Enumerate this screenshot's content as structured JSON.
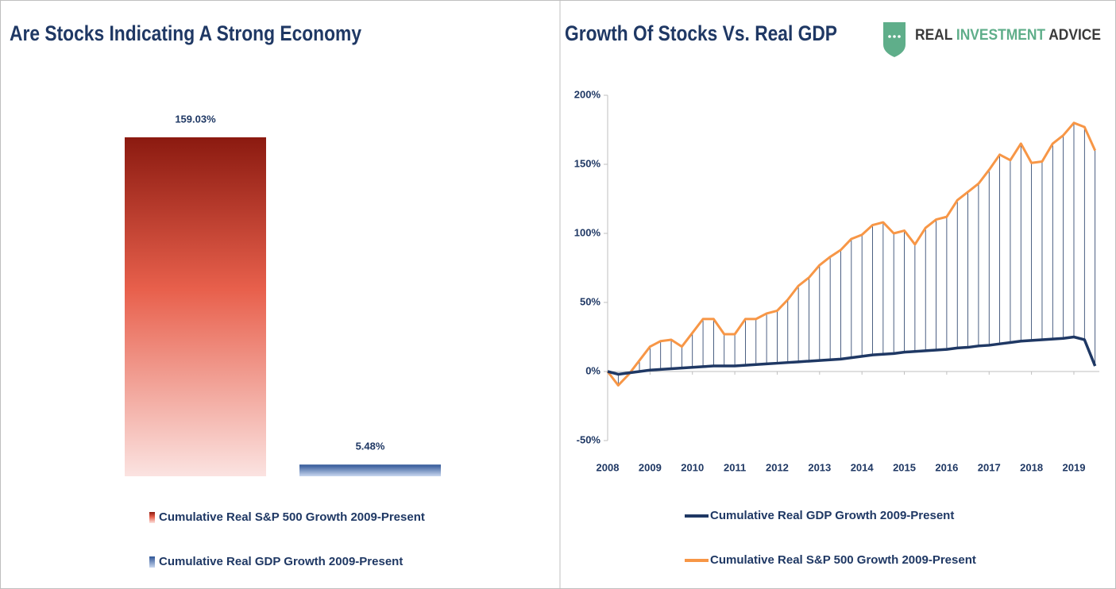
{
  "logo": [
    "REAL",
    "INVESTMENT",
    "ADVICE"
  ],
  "chart_data": [
    {
      "type": "bar",
      "title": "Are Stocks Indicating A Strong Economy",
      "series": [
        {
          "name": "Cumulative Real S&P 500 Growth 2009-Present",
          "color": "#9b2317",
          "values": [
            159.03
          ],
          "value_labels": [
            "159.03%"
          ]
        },
        {
          "name": "Cumulative Real GDP Growth 2009-Present",
          "color": "#2f5597",
          "values": [
            5.48
          ],
          "value_labels": [
            "5.48%"
          ]
        }
      ]
    },
    {
      "type": "line",
      "title": "Growth Of Stocks Vs. Real GDP",
      "x": [
        2008,
        2008.25,
        2008.5,
        2008.75,
        2009,
        2009.25,
        2009.5,
        2009.75,
        2010,
        2010.25,
        2010.5,
        2010.75,
        2011,
        2011.25,
        2011.5,
        2011.75,
        2012,
        2012.25,
        2012.5,
        2012.75,
        2013,
        2013.25,
        2013.5,
        2013.75,
        2014,
        2014.25,
        2014.5,
        2014.75,
        2015,
        2015.25,
        2015.5,
        2015.75,
        2016,
        2016.25,
        2016.5,
        2016.75,
        2017,
        2017.25,
        2017.5,
        2017.75,
        2018,
        2018.25,
        2018.5,
        2018.75,
        2019,
        2019.25,
        2019.5
      ],
      "series": [
        {
          "name": "Cumulative Real GDP Growth 2009-Present",
          "color": "#1f3864",
          "values": [
            0,
            -2,
            -1,
            0,
            1,
            1.5,
            2,
            2.5,
            3,
            3.5,
            4,
            4,
            4,
            4.5,
            5,
            5.5,
            6,
            6.5,
            7,
            7.5,
            8,
            8.5,
            9,
            10,
            11,
            12,
            12.5,
            13,
            14,
            14.5,
            15,
            15.5,
            16,
            17,
            17.5,
            18.5,
            19,
            20,
            21,
            22,
            22.5,
            23,
            23.5,
            24,
            25,
            23,
            4
          ]
        },
        {
          "name": "Cumulative Real S&P 500 Growth 2009-Present",
          "color": "#f79646",
          "values": [
            0,
            -10,
            -2,
            8,
            18,
            22,
            23,
            18,
            28,
            38,
            38,
            27,
            27,
            38,
            38,
            42,
            44,
            52,
            62,
            68,
            77,
            83,
            88,
            96,
            99,
            106,
            108,
            100,
            102,
            92,
            104,
            110,
            112,
            124,
            130,
            136,
            146,
            157,
            153,
            165,
            151,
            152,
            165,
            171,
            180,
            177,
            160
          ]
        }
      ],
      "drop_lines": true,
      "xlim": [
        2008,
        2019.6
      ],
      "xticks": [
        2008,
        2009,
        2010,
        2011,
        2012,
        2013,
        2014,
        2015,
        2016,
        2017,
        2018,
        2019
      ],
      "ylim": [
        -50,
        200
      ],
      "yticks": [
        {
          "value": -50,
          "label": "-50%"
        },
        {
          "value": 0,
          "label": "0%"
        },
        {
          "value": 50,
          "label": "50%"
        },
        {
          "value": 100,
          "label": "100%"
        },
        {
          "value": 150,
          "label": "150%"
        },
        {
          "value": 200,
          "label": "200%"
        }
      ]
    }
  ]
}
